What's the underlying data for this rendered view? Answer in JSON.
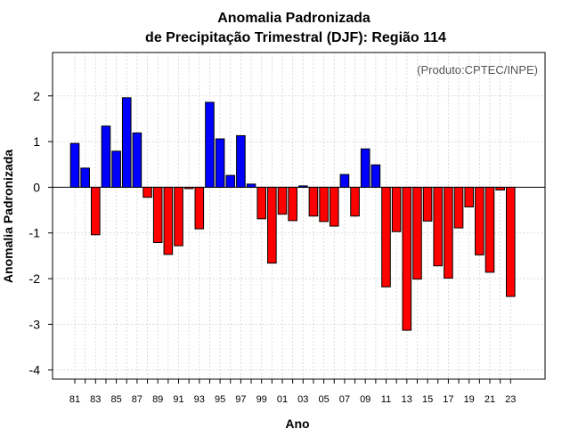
{
  "chart_data": {
    "type": "bar",
    "title": "Anomalia Padronizada",
    "subtitle": "de Precipitação Trimestral (DJF): Região 114",
    "xlabel": "Ano",
    "ylabel": "Anomalia Padronizada",
    "annotation": "(Produto:CPTEC/INPE)",
    "ylim": [
      -4.2,
      2.95
    ],
    "yticks": [
      -4,
      -3,
      -2,
      -1,
      0,
      1,
      2
    ],
    "ytick_labels": [
      "-4",
      "-3",
      "-2",
      "-1",
      "0",
      "1",
      "2"
    ],
    "grid": true,
    "positive_color": "#0000ff",
    "negative_color": "#ff0000",
    "categories": [
      "1981",
      "1982",
      "1983",
      "1984",
      "1985",
      "1986",
      "1987",
      "1988",
      "1989",
      "1990",
      "1991",
      "1992",
      "1993",
      "1994",
      "1995",
      "1996",
      "1997",
      "1998",
      "1999",
      "2000",
      "2001",
      "2002",
      "2003",
      "2004",
      "2005",
      "2006",
      "2007",
      "2008",
      "2009",
      "2010",
      "2011",
      "2012",
      "2013",
      "2014",
      "2015",
      "2016",
      "2017",
      "2018",
      "2019",
      "2020",
      "2021",
      "2022",
      "2023"
    ],
    "xtick_labels": [
      "81",
      "83",
      "85",
      "87",
      "89",
      "91",
      "93",
      "95",
      "97",
      "99",
      "01",
      "03",
      "05",
      "07",
      "09",
      "11",
      "13",
      "15",
      "17",
      "19",
      "21",
      "23"
    ],
    "values": [
      0.96,
      0.42,
      -1.04,
      1.34,
      0.79,
      1.96,
      1.19,
      -0.22,
      -1.21,
      -1.47,
      -1.28,
      -0.03,
      -0.91,
      1.86,
      1.06,
      0.26,
      1.13,
      0.07,
      -0.69,
      -1.66,
      -0.59,
      -0.73,
      0.03,
      -0.63,
      -0.75,
      -0.85,
      0.28,
      -0.63,
      0.84,
      0.49,
      -2.18,
      -0.97,
      -3.13,
      -2.01,
      -0.74,
      -1.72,
      -1.99,
      -0.89,
      -0.43,
      -1.48,
      -1.86,
      -0.06,
      -2.39
    ]
  }
}
